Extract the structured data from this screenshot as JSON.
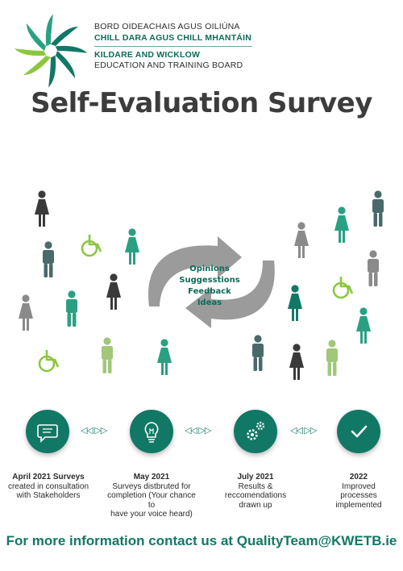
{
  "org": {
    "line1": "BORD OIDEACHAIS AGUS OILIÚNA",
    "line2": "CHILL DARA AGUS CHILL MHANTÁIN",
    "line3": "KILDARE AND WICKLOW",
    "line4": "EDUCATION AND TRAINING BOARD"
  },
  "title": "Self-Evaluation Survey",
  "cycle_words": [
    "Opinions",
    "Suggesstions",
    "Feedback",
    "Ideas"
  ],
  "colors": {
    "teal": "#127866",
    "mint": "#2aa082",
    "green": "#8cc63f",
    "grey": "#8a8a8a",
    "dark": "#3a3a3a"
  },
  "steps": [
    {
      "icon": "chat-icon",
      "date": "April 2021 Surveys",
      "lines": [
        "created in consultation",
        "with Stakeholders"
      ]
    },
    {
      "icon": "lightbulb-icon",
      "date": "May 2021",
      "lines": [
        "Surveys distbruted for",
        "completion (Your chance to",
        "have your voice heard)"
      ]
    },
    {
      "icon": "gears-icon",
      "date": "July 2021",
      "lines": [
        "Results &",
        "reccomendations",
        "drawn up"
      ]
    },
    {
      "icon": "checkmark-icon",
      "date": "2022",
      "lines": [
        "Improved",
        "processes",
        "implemented"
      ]
    }
  ],
  "arrow_glyphs": "◁◁ ▷▷",
  "footer": "For more information contact us at QualityTeam@KWETB.ie"
}
